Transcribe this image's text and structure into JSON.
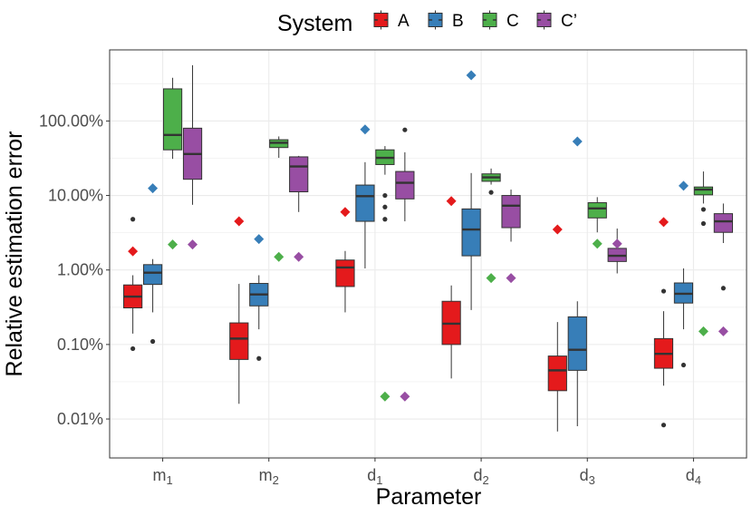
{
  "chart_data": {
    "type": "boxplot",
    "xlabel": "Parameter",
    "ylabel": "Relative estimation error",
    "yscale": "log10",
    "ylim": [
      0.003,
      900
    ],
    "yticks": [
      {
        "value": 0.01,
        "label": "0.01%"
      },
      {
        "value": 0.1,
        "label": "0.10%"
      },
      {
        "value": 1,
        "label": "1.00%"
      },
      {
        "value": 10,
        "label": "10.00%"
      },
      {
        "value": 100,
        "label": "100.00%"
      }
    ],
    "categories": [
      {
        "base": "m",
        "sub": "1"
      },
      {
        "base": "m",
        "sub": "2"
      },
      {
        "base": "d",
        "sub": "1"
      },
      {
        "base": "d",
        "sub": "2"
      },
      {
        "base": "d",
        "sub": "3"
      },
      {
        "base": "d",
        "sub": "4"
      }
    ],
    "legend": {
      "title": "System",
      "position": "top"
    },
    "series": [
      {
        "name": "A",
        "color": "#e41a1c",
        "boxes": [
          {
            "whisker_low": 0.14,
            "q1": 0.31,
            "median": 0.44,
            "q3": 0.63,
            "whisker_high": 0.85,
            "outliers": [
              4.8,
              0.088
            ],
            "diamond": 1.78
          },
          {
            "whisker_low": 0.016,
            "q1": 0.063,
            "median": 0.12,
            "q3": 0.195,
            "whisker_high": 0.65,
            "outliers": [],
            "diamond": 4.5
          },
          {
            "whisker_low": 0.27,
            "q1": 0.6,
            "median": 1.08,
            "q3": 1.36,
            "whisker_high": 1.8,
            "outliers": [],
            "diamond": 6.0
          },
          {
            "whisker_low": 0.035,
            "q1": 0.1,
            "median": 0.19,
            "q3": 0.38,
            "whisker_high": 0.62,
            "outliers": [],
            "diamond": 8.4
          },
          {
            "whisker_low": 0.0068,
            "q1": 0.024,
            "median": 0.045,
            "q3": 0.07,
            "whisker_high": 0.2,
            "outliers": [],
            "diamond": 3.5
          },
          {
            "whisker_low": 0.028,
            "q1": 0.048,
            "median": 0.075,
            "q3": 0.12,
            "whisker_high": 0.28,
            "outliers": [
              0.52,
              0.0083
            ],
            "diamond": 4.4
          }
        ]
      },
      {
        "name": "B",
        "color": "#377eb8",
        "boxes": [
          {
            "whisker_low": 0.27,
            "q1": 0.64,
            "median": 0.92,
            "q3": 1.18,
            "whisker_high": 1.4,
            "outliers": [
              0.11
            ],
            "diamond": 12.5
          },
          {
            "whisker_low": 0.16,
            "q1": 0.33,
            "median": 0.47,
            "q3": 0.66,
            "whisker_high": 0.85,
            "outliers": [
              0.065
            ],
            "diamond": 2.6
          },
          {
            "whisker_low": 1.05,
            "q1": 4.5,
            "median": 9.8,
            "q3": 13.8,
            "whisker_high": 28,
            "outliers": [],
            "diamond": 77
          },
          {
            "whisker_low": 0.29,
            "q1": 1.55,
            "median": 3.5,
            "q3": 6.6,
            "whisker_high": 20,
            "outliers": [],
            "diamond": 410
          },
          {
            "whisker_low": 0.008,
            "q1": 0.045,
            "median": 0.085,
            "q3": 0.235,
            "whisker_high": 0.38,
            "outliers": [],
            "diamond": 53
          },
          {
            "whisker_low": 0.16,
            "q1": 0.36,
            "median": 0.48,
            "q3": 0.67,
            "whisker_high": 1.05,
            "outliers": [
              0.053
            ],
            "diamond": 13.5
          }
        ]
      },
      {
        "name": "C",
        "color": "#4daf4a",
        "boxes": [
          {
            "whisker_low": 31,
            "q1": 41,
            "median": 65,
            "q3": 270,
            "whisker_high": 380,
            "outliers": [],
            "diamond": 2.2
          },
          {
            "whisker_low": 32,
            "q1": 44,
            "median": 51,
            "q3": 56,
            "whisker_high": 62,
            "outliers": [],
            "diamond": 1.5
          },
          {
            "whisker_low": 19,
            "q1": 26,
            "median": 32,
            "q3": 41,
            "whisker_high": 46,
            "outliers": [
              10,
              7,
              4.8
            ],
            "diamond": 0.02
          },
          {
            "whisker_low": 14,
            "q1": 15.5,
            "median": 17.5,
            "q3": 19.5,
            "whisker_high": 23,
            "outliers": [
              11
            ],
            "diamond": 0.78
          },
          {
            "whisker_low": 3.2,
            "q1": 5,
            "median": 6.7,
            "q3": 8,
            "whisker_high": 9.5,
            "outliers": [],
            "diamond": 2.25
          },
          {
            "whisker_low": 7.8,
            "q1": 10.2,
            "median": 12,
            "q3": 13,
            "whisker_high": 21,
            "outliers": [
              6.5,
              4.2
            ],
            "diamond": 0.15
          }
        ]
      },
      {
        "name": "C’",
        "color": "#984ea3",
        "boxes": [
          {
            "whisker_low": 7.5,
            "q1": 16.5,
            "median": 36,
            "q3": 80,
            "whisker_high": 560,
            "outliers": [],
            "diamond": 2.2
          },
          {
            "whisker_low": 6,
            "q1": 11.2,
            "median": 24.5,
            "q3": 33,
            "whisker_high": 34,
            "outliers": [],
            "diamond": 1.5
          },
          {
            "whisker_low": 4.5,
            "q1": 9,
            "median": 14.8,
            "q3": 21,
            "whisker_high": 38,
            "outliers": [
              76
            ],
            "diamond": 0.02
          },
          {
            "whisker_low": 2.4,
            "q1": 3.7,
            "median": 7.3,
            "q3": 10,
            "whisker_high": 12,
            "outliers": [],
            "diamond": 0.78
          },
          {
            "whisker_low": 0.9,
            "q1": 1.3,
            "median": 1.55,
            "q3": 1.95,
            "whisker_high": 3.6,
            "outliers": [],
            "diamond": 2.25
          },
          {
            "whisker_low": 2.3,
            "q1": 3.2,
            "median": 4.5,
            "q3": 5.7,
            "whisker_high": 7.8,
            "outliers": [
              0.57
            ],
            "diamond": 0.15
          }
        ]
      }
    ]
  }
}
